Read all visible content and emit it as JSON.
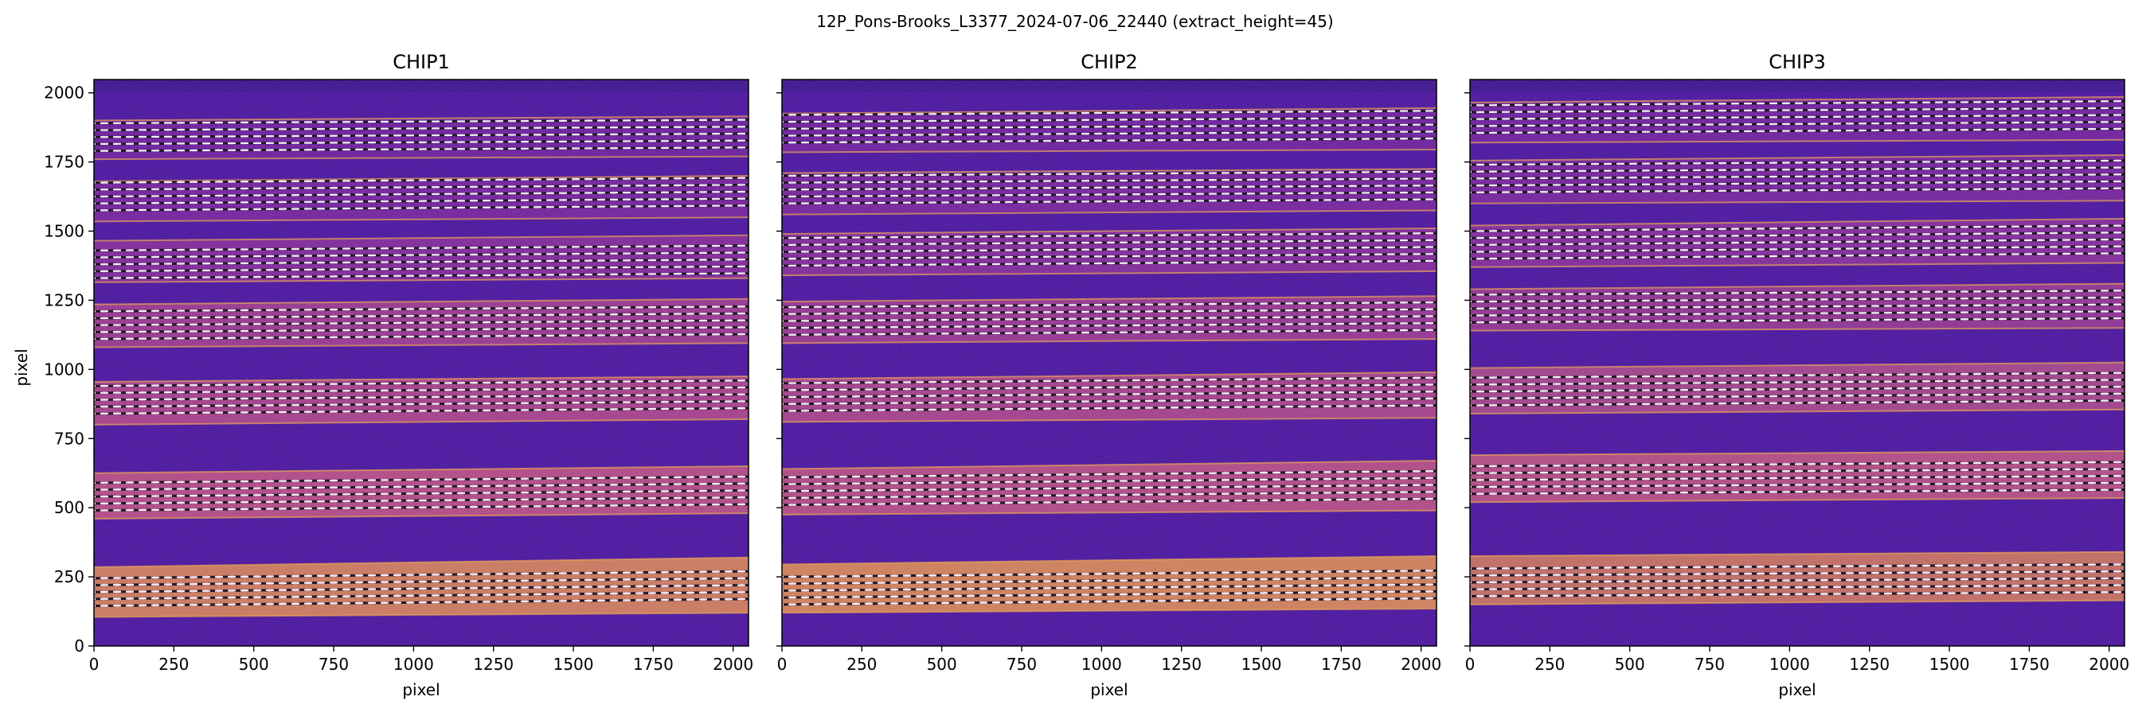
{
  "figure": {
    "suptitle": "12P_Pons-Brooks_L3377_2024-07-06_22440  (extract_height=45)"
  },
  "chart_data": {
    "type": "heatmap",
    "colormap": "plasma",
    "background_color": "#3b0a96",
    "trace_color": "#ffffff",
    "xlim": [
      0,
      2048
    ],
    "ylim": [
      0,
      2048
    ],
    "xticks": [
      0,
      250,
      500,
      750,
      1000,
      1250,
      1500,
      1750,
      2000
    ],
    "yticks": [
      0,
      250,
      500,
      750,
      1000,
      1250,
      1500,
      1750,
      2000
    ],
    "xlabel": "pixel",
    "ylabel": "pixel",
    "panels": [
      {
        "title": "CHIP1",
        "orders": [
          {
            "bottom": [
              105,
              120
            ],
            "top": [
              285,
              320
            ],
            "color": "#d4834a",
            "traces": [
              145,
              170,
              195,
              220,
              245
            ]
          },
          {
            "bottom": [
              460,
              480
            ],
            "top": [
              625,
              650
            ],
            "color": "#b64a78",
            "traces": [
              490,
              515,
              540,
              565,
              590
            ]
          },
          {
            "bottom": [
              800,
              820
            ],
            "top": [
              955,
              975
            ],
            "color": "#a63e80",
            "traces": [
              840,
              865,
              890,
              915,
              940
            ]
          },
          {
            "bottom": [
              1080,
              1095
            ],
            "top": [
              1235,
              1255
            ],
            "color": "#973585",
            "traces": [
              1110,
              1135,
              1160,
              1185,
              1210
            ]
          },
          {
            "bottom": [
              1315,
              1330
            ],
            "top": [
              1465,
              1485
            ],
            "color": "#7a2390",
            "traces": [
              1330,
              1355,
              1380,
              1405,
              1430
            ]
          },
          {
            "bottom": [
              1535,
              1550
            ],
            "top": [
              1680,
              1700
            ],
            "color": "#6c1b93",
            "traces": [
              1575,
              1600,
              1625,
              1650,
              1675
            ]
          },
          {
            "bottom": [
              1760,
              1770
            ],
            "top": [
              1900,
              1915
            ],
            "color": "#631795",
            "traces": [
              1790,
              1815,
              1840,
              1865,
              1890
            ]
          }
        ]
      },
      {
        "title": "CHIP2",
        "orders": [
          {
            "bottom": [
              120,
              135
            ],
            "top": [
              295,
              325
            ],
            "color": "#d88a45",
            "traces": [
              150,
              175,
              200,
              225,
              250
            ]
          },
          {
            "bottom": [
              475,
              490
            ],
            "top": [
              640,
              670
            ],
            "color": "#b44a78",
            "traces": [
              510,
              535,
              560,
              585,
              610
            ]
          },
          {
            "bottom": [
              810,
              825
            ],
            "top": [
              965,
              990
            ],
            "color": "#a53e80",
            "traces": [
              850,
              875,
              900,
              925,
              950
            ]
          },
          {
            "bottom": [
              1095,
              1110
            ],
            "top": [
              1245,
              1265
            ],
            "color": "#933385",
            "traces": [
              1125,
              1150,
              1175,
              1200,
              1225
            ]
          },
          {
            "bottom": [
              1340,
              1355
            ],
            "top": [
              1490,
              1510
            ],
            "color": "#7b2490",
            "traces": [
              1375,
              1400,
              1425,
              1450,
              1475
            ]
          },
          {
            "bottom": [
              1560,
              1575
            ],
            "top": [
              1710,
              1725
            ],
            "color": "#6e1c93",
            "traces": [
              1600,
              1625,
              1650,
              1675,
              1700
            ]
          },
          {
            "bottom": [
              1785,
              1795
            ],
            "top": [
              1925,
              1945
            ],
            "color": "#651895",
            "traces": [
              1820,
              1845,
              1870,
              1895,
              1920
            ]
          }
        ]
      },
      {
        "title": "CHIP3",
        "orders": [
          {
            "bottom": [
              150,
              165
            ],
            "top": [
              325,
              340
            ],
            "color": "#c9734f",
            "traces": [
              180,
              205,
              230,
              255,
              280
            ]
          },
          {
            "bottom": [
              520,
              535
            ],
            "top": [
              690,
              705
            ],
            "color": "#b54c76",
            "traces": [
              550,
              575,
              600,
              625,
              650
            ]
          },
          {
            "bottom": [
              840,
              855
            ],
            "top": [
              1005,
              1025
            ],
            "color": "#a1417e",
            "traces": [
              870,
              895,
              920,
              945,
              970
            ]
          },
          {
            "bottom": [
              1140,
              1150
            ],
            "top": [
              1290,
              1310
            ],
            "color": "#8c2f87",
            "traces": [
              1170,
              1195,
              1220,
              1245,
              1270
            ]
          },
          {
            "bottom": [
              1370,
              1385
            ],
            "top": [
              1520,
              1545
            ],
            "color": "#7c2590",
            "traces": [
              1400,
              1425,
              1450,
              1475,
              1500
            ]
          },
          {
            "bottom": [
              1600,
              1610
            ],
            "top": [
              1755,
              1775
            ],
            "color": "#6d1c93",
            "traces": [
              1640,
              1665,
              1690,
              1715,
              1740
            ]
          },
          {
            "bottom": [
              1820,
              1830
            ],
            "top": [
              1965,
              1985
            ],
            "color": "#661895",
            "traces": [
              1855,
              1880,
              1905,
              1930,
              1955
            ]
          }
        ]
      }
    ]
  }
}
